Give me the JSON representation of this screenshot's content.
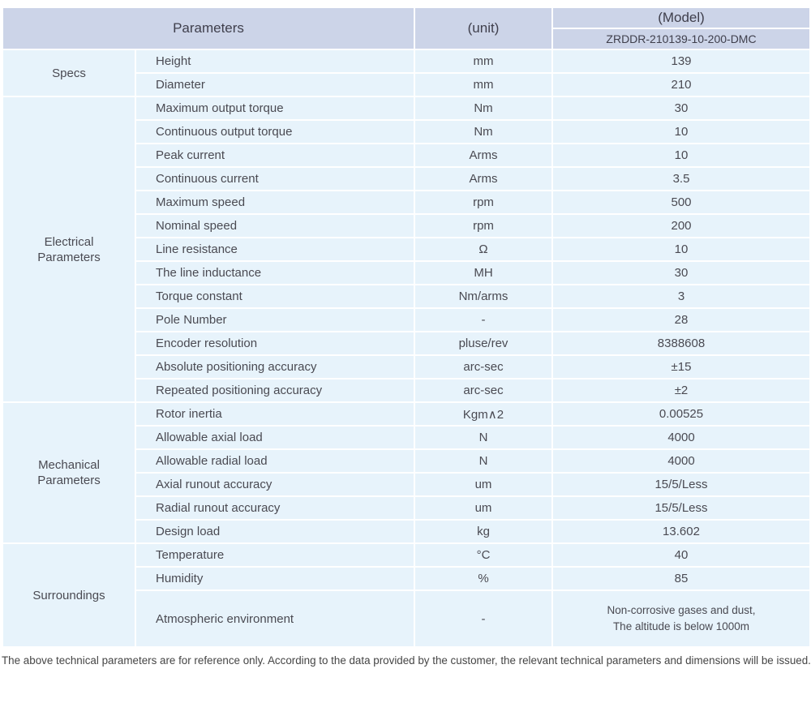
{
  "colors": {
    "header_bg": "#ccd4e8",
    "row_bg": "#e7f3fb",
    "border": "#ffffff",
    "header_text": "#3f3f4c",
    "body_text": "#4a4a52"
  },
  "table": {
    "header": {
      "parameters": "Parameters",
      "unit": "(unit)",
      "model": "(Model)",
      "model_value": "ZRDDR-210139-10-200-DMC"
    },
    "sections": [
      {
        "label": "Specs",
        "rows": [
          [
            "Height",
            "mm",
            "139"
          ],
          [
            "Diameter",
            "mm",
            "210"
          ]
        ]
      },
      {
        "label": "Electrical\nParameters",
        "rows": [
          [
            "Maximum output torque",
            "Nm",
            "30"
          ],
          [
            "Continuous output torque",
            "Nm",
            "10"
          ],
          [
            "Peak current",
            "Arms",
            "10"
          ],
          [
            "Continuous current",
            "Arms",
            "3.5"
          ],
          [
            "Maximum speed",
            "rpm",
            "500"
          ],
          [
            "Nominal speed",
            "rpm",
            "200"
          ],
          [
            "Line resistance",
            "Ω",
            "10"
          ],
          [
            "The line inductance",
            "MH",
            "30"
          ],
          [
            "Torque constant",
            "Nm/arms",
            "3"
          ],
          [
            "Pole Number",
            "-",
            "28"
          ],
          [
            "Encoder resolution",
            "pluse/rev",
            "8388608"
          ],
          [
            "Absolute positioning accuracy",
            "arc-sec",
            "±15"
          ],
          [
            "Repeated positioning accuracy",
            "arc-sec",
            "±2"
          ]
        ]
      },
      {
        "label": "Mechanical\nParameters",
        "rows": [
          [
            "Rotor inertia",
            "Kgm∧2",
            "0.00525"
          ],
          [
            "Allowable axial load",
            "N",
            "4000"
          ],
          [
            "Allowable radial load",
            "N",
            "4000"
          ],
          [
            "Axial runout accuracy",
            "um",
            "15/5/Less"
          ],
          [
            "Radial runout accuracy",
            "um",
            "15/5/Less"
          ],
          [
            "Design load",
            "kg",
            "13.602"
          ]
        ]
      },
      {
        "label": "Surroundings",
        "rows": [
          [
            "Temperature",
            "°C",
            "40"
          ],
          [
            "Humidity",
            "%",
            "85"
          ],
          [
            "Atmospheric environment",
            "-",
            "Non-corrosive gases and dust,\nThe altitude is below 1000m"
          ]
        ]
      }
    ]
  },
  "footnote": "The above technical parameters are for reference only. According to the data provided by the customer, the relevant technical parameters and dimensions will be issued."
}
